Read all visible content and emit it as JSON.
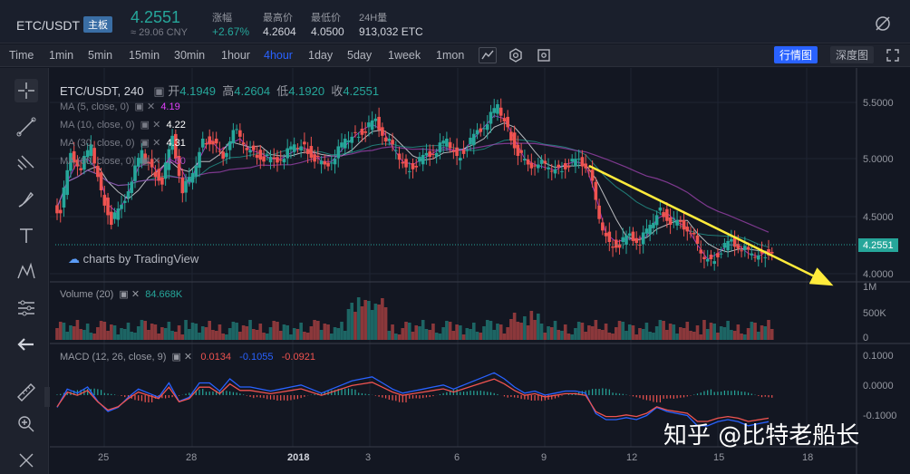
{
  "header": {
    "pair": "ETC/USDT",
    "badge": "主板",
    "price": "4.2551",
    "cny": "≈ 29.06 CNY",
    "stats": [
      {
        "label": "涨幅",
        "value": "+2.67%"
      },
      {
        "label": "最高价",
        "value": "4.2604"
      },
      {
        "label": "最低价",
        "value": "4.0500"
      },
      {
        "label": "24H量",
        "value": "913,032 ETC"
      }
    ]
  },
  "toolbar": {
    "intervals": [
      "Time",
      "1min",
      "5min",
      "15min",
      "30min",
      "1hour",
      "4hour",
      "1day",
      "5day",
      "1week",
      "1mon"
    ],
    "active_interval": "4hour",
    "view_tabs": [
      "行情图",
      "深度图"
    ],
    "active_view": "行情图"
  },
  "left_tools": [
    "crosshair-icon",
    "trendline-icon",
    "fib-icon",
    "brush-icon",
    "text-icon",
    "pattern-icon",
    "measure-icon",
    "back-arrow-icon",
    "ruler-icon",
    "zoom-in-icon",
    "eraser-icon"
  ],
  "chart": {
    "symbol": "ETC/USDT, 240",
    "ohlc": {
      "open_label": "开",
      "open": "4.1949",
      "high_label": "高",
      "high": "4.2604",
      "low_label": "低",
      "low": "4.1920",
      "close_label": "收",
      "close": "4.2551"
    },
    "ma_legends": [
      {
        "label": "MA (5, close, 0)",
        "value": "4.19",
        "color": "#e040fb"
      },
      {
        "label": "MA (10, close, 0)",
        "value": "4.22",
        "color": "#ffffff"
      },
      {
        "label": "MA (30, close, 0)",
        "value": "4.31",
        "color": "#ffffff"
      },
      {
        "label": "MA (60, close, 0)",
        "value": "4.60",
        "color": "#ab47bc"
      }
    ],
    "branding": "charts by TradingView",
    "volume_label": "Volume (20)",
    "volume_value": "84.668K",
    "macd_label": "MACD (12, 26, close, 9)",
    "macd_values": [
      {
        "value": "0.0134",
        "color": "#ef5350"
      },
      {
        "value": "-0.1055",
        "color": "#2962ff"
      },
      {
        "value": "-0.0921",
        "color": "#ef5350"
      }
    ],
    "watermark": "知乎 @比特老船长",
    "colors": {
      "up": "#26a69a",
      "down": "#ef5350",
      "trend": "#ffeb3b",
      "price_tag": "#26a69a"
    }
  },
  "chart_data": {
    "type": "candlestick",
    "price_axis": [
      "5.5000",
      "5.0000",
      "4.5000",
      "4.0000"
    ],
    "current_price": "4.2551",
    "volume_axis": [
      "1M",
      "500K",
      "0"
    ],
    "macd_axis": [
      "0.1000",
      "0.0000",
      "-0.1000"
    ],
    "x_ticks": [
      "25",
      "28",
      "2018",
      "3",
      "6",
      "9",
      "12",
      "15",
      "18"
    ],
    "price_range": [
      3.95,
      5.7
    ],
    "close_path": [
      4.6,
      5.05,
      4.95,
      5.1,
      4.75,
      4.5,
      4.6,
      4.85,
      5.05,
      4.95,
      4.85,
      5.2,
      4.75,
      4.85,
      5.2,
      5.2,
      5.0,
      5.3,
      5.1,
      5.1,
      5.05,
      5.0,
      5.05,
      5.1,
      5.15,
      5.05,
      4.95,
      5.05,
      5.15,
      5.25,
      5.3,
      5.35,
      5.2,
      5.05,
      4.95,
      5.0,
      5.05,
      5.1,
      5.15,
      5.05,
      5.15,
      5.25,
      5.35,
      5.45,
      5.3,
      5.1,
      4.95,
      5.0,
      4.9,
      4.95,
      5.0,
      5.0,
      4.95,
      4.45,
      4.3,
      4.3,
      4.35,
      4.3,
      4.4,
      4.6,
      4.5,
      4.45,
      4.4,
      4.15,
      4.15,
      4.25,
      4.3,
      4.25,
      4.15,
      4.2,
      4.25
    ]
  }
}
